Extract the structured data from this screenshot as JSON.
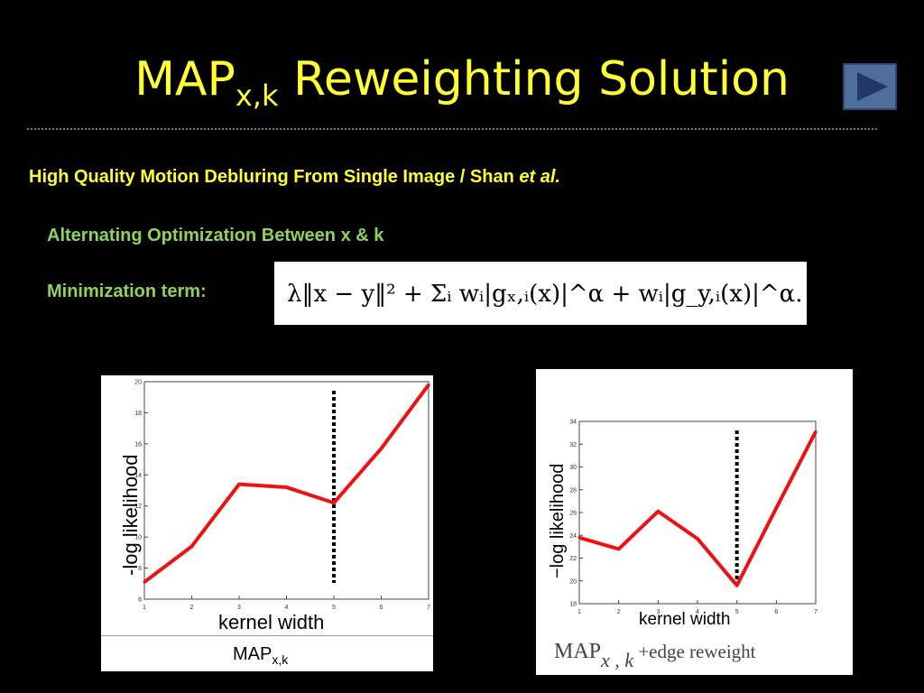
{
  "slide": {
    "title_main": "MAP",
    "title_sub": "x,k",
    "title_rest": " Reweighting Solution",
    "ref_text": "High Quality Motion Debluring From Single Image /  Shan ",
    "ref_italic": "et al.",
    "alt_opt": "Alternating Optimization Between x & k",
    "min_term": "Minimization term:"
  },
  "equation": {
    "text": "λ‖x − y‖² + Σᵢ wᵢ|gₓ,ᵢ(x)|^α + wᵢ|g_y,ᵢ(x)|^α."
  },
  "colors": {
    "title": "#ffff33",
    "green": "#8fd35a",
    "line": "#ee1111"
  },
  "chart_data": [
    {
      "type": "line",
      "x": [
        1,
        2,
        3,
        4,
        5,
        6,
        7
      ],
      "series": [
        {
          "values": [
            7.1,
            9.4,
            13.4,
            13.2,
            12.2,
            15.7,
            19.8
          ]
        }
      ],
      "marker_x": 5,
      "xlim": [
        1,
        7
      ],
      "ylim": [
        6,
        20
      ],
      "xticks": [
        1,
        2,
        3,
        4,
        5,
        6,
        7
      ],
      "yticks": [
        6,
        8,
        10,
        12,
        14,
        16,
        18,
        20
      ],
      "xlabel": "kernel width",
      "ylabel": "-log likelihood",
      "caption_main": "MAP",
      "caption_sub": "x,k"
    },
    {
      "type": "line",
      "x": [
        1,
        2,
        3,
        4,
        5,
        6,
        7
      ],
      "series": [
        {
          "values": [
            23.8,
            22.8,
            26.1,
            23.7,
            19.6,
            26.4,
            33.1
          ]
        }
      ],
      "marker_x": 5,
      "xlim": [
        1,
        7
      ],
      "ylim": [
        18,
        34
      ],
      "xticks": [
        1,
        2,
        3,
        4,
        5,
        6,
        7
      ],
      "yticks": [
        18,
        20,
        22,
        24,
        26,
        28,
        30,
        32,
        34
      ],
      "xlabel": "kernel width",
      "ylabel": "−log likelihood",
      "caption_main": "MAP",
      "caption_sub": "x , k",
      "caption_rest": " +edge reweight"
    }
  ]
}
